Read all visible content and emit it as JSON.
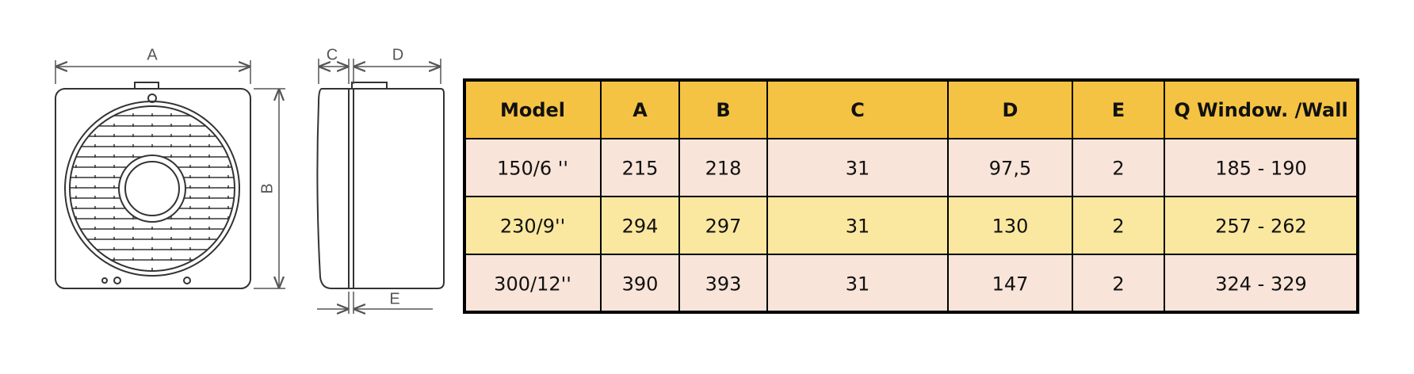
{
  "diagram": {
    "labels": {
      "A": "A",
      "B": "B",
      "C": "C",
      "D": "D",
      "E": "E"
    }
  },
  "table": {
    "header": [
      "Model",
      "A",
      "B",
      "C",
      "D",
      "E",
      "Q Window. /Wall"
    ],
    "rows": [
      [
        "150/6 ''",
        "215",
        "218",
        "31",
        "97,5",
        "2",
        "185 - 190"
      ],
      [
        "230/9''",
        "294",
        "297",
        "31",
        "130",
        "2",
        "257 - 262"
      ],
      [
        "300/12''",
        "390",
        "393",
        "31",
        "147",
        "2",
        "324 - 329"
      ]
    ]
  }
}
